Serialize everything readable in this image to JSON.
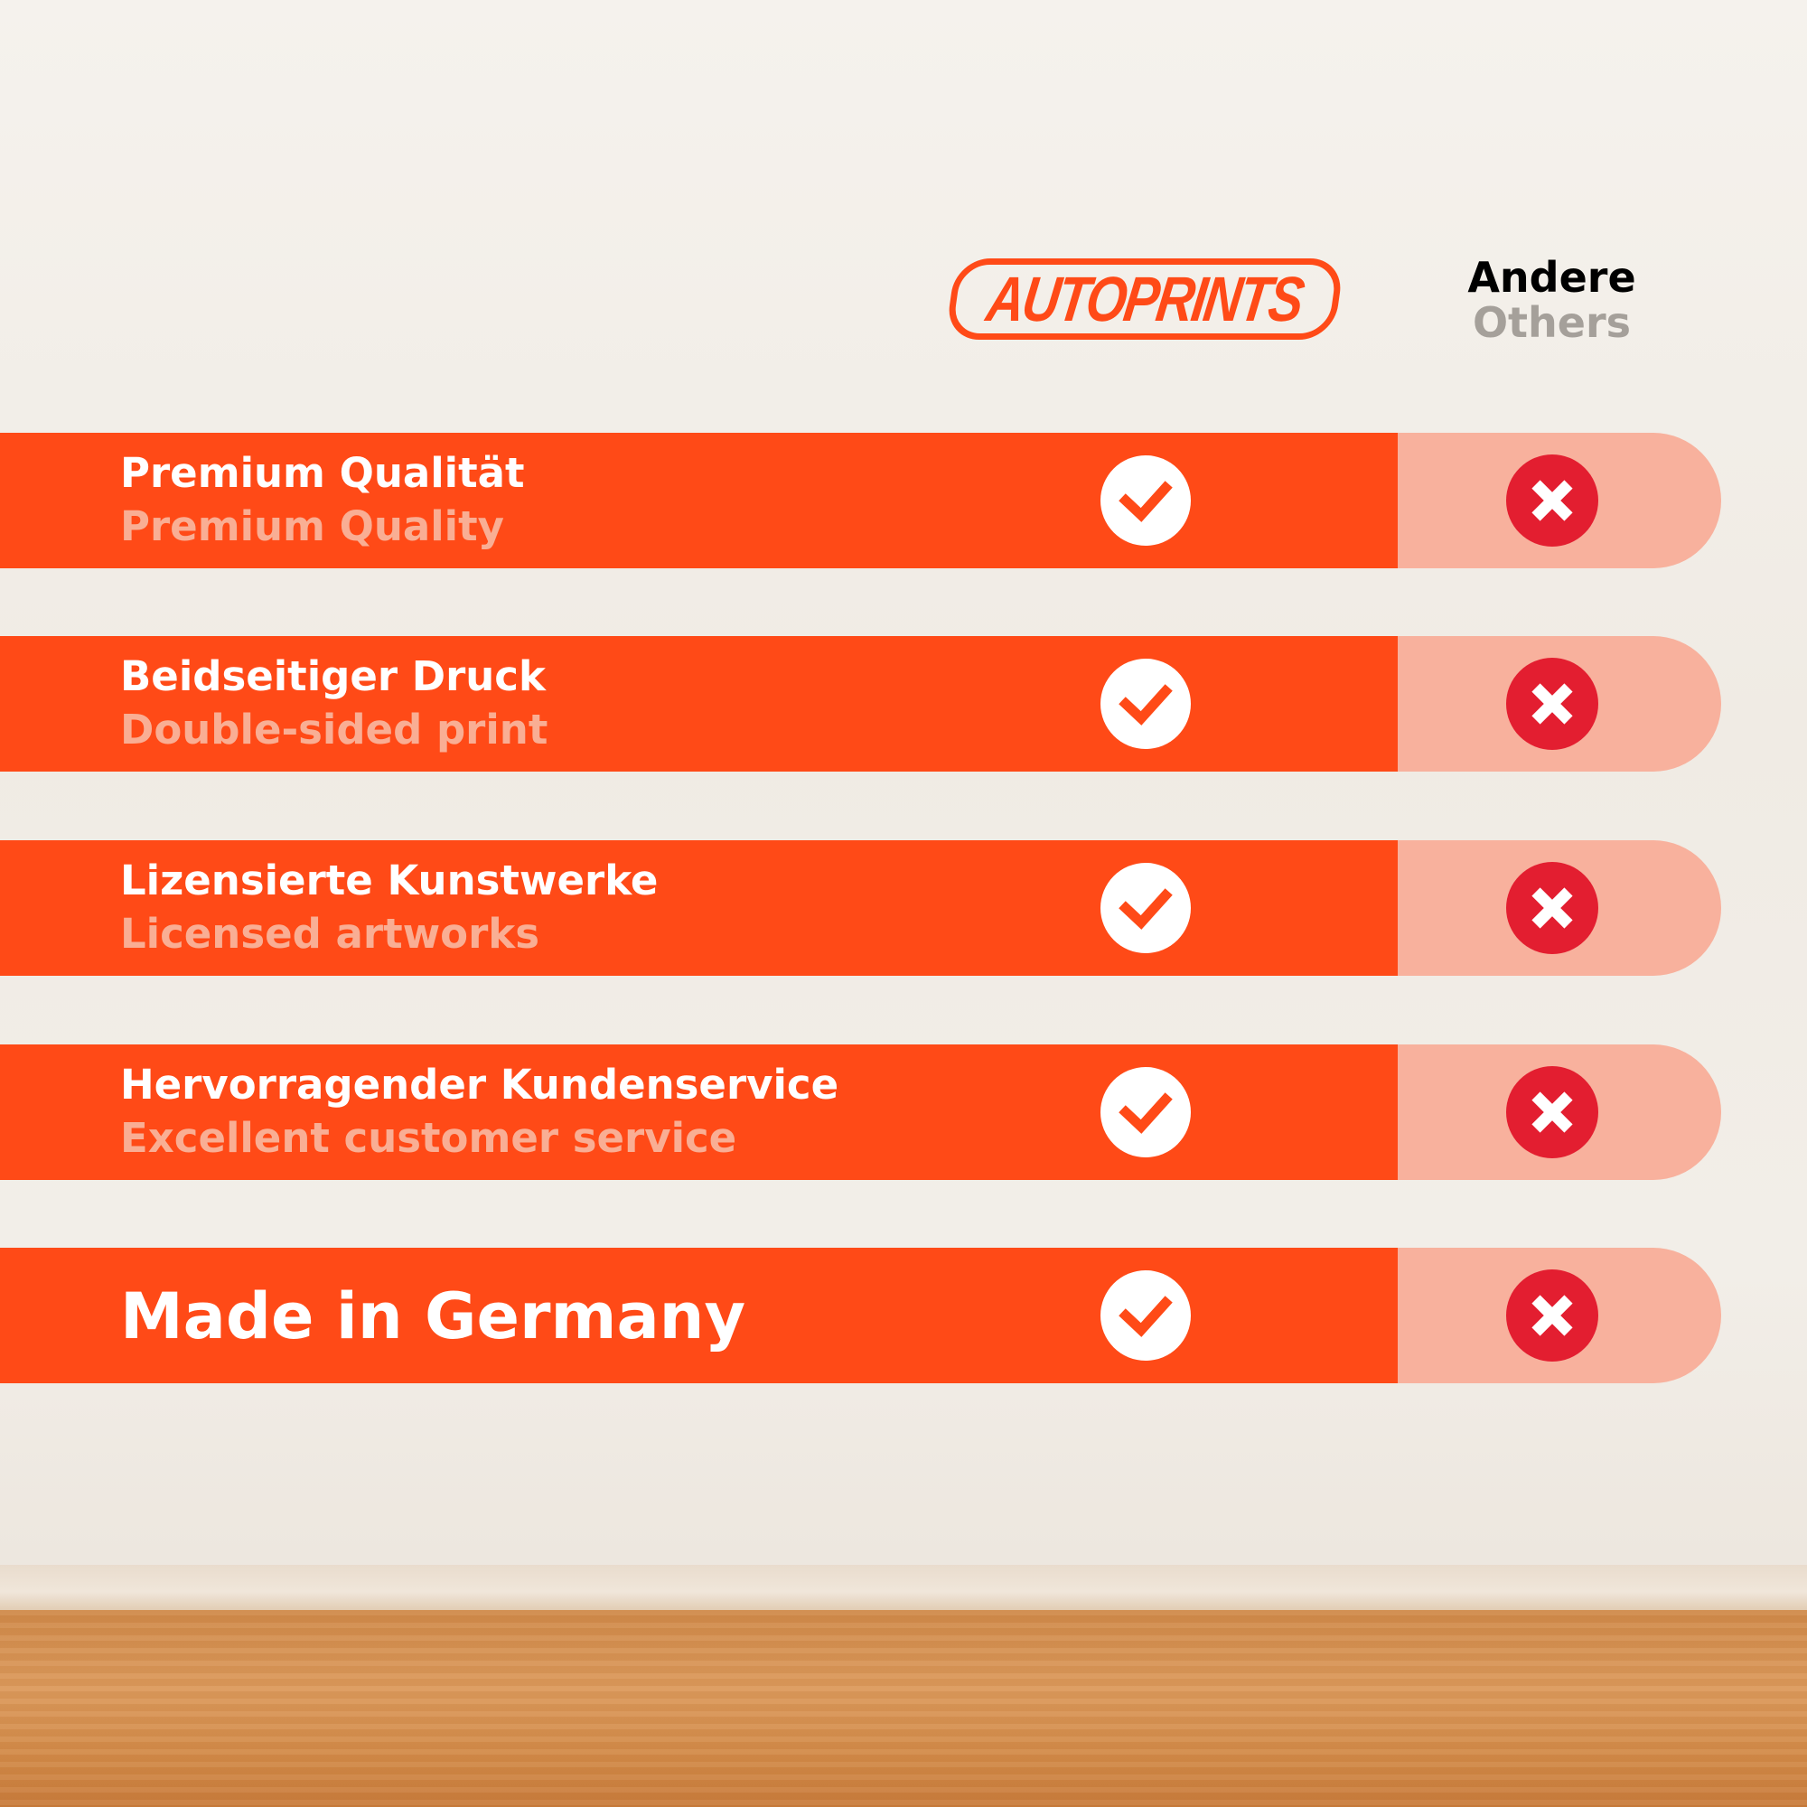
{
  "header": {
    "brand_logo_text": "AUTOPRINTS",
    "others_de": "Andere",
    "others_en": "Others"
  },
  "colors": {
    "brand": "#ff4a17",
    "others_bg": "#f8b19d",
    "cross": "#e31e30"
  },
  "rows": [
    {
      "de": "Premium Qualität",
      "en": "Premium Quality",
      "autoprints": "check-icon",
      "others": "cross-icon"
    },
    {
      "de": "Beidseitiger Druck",
      "en": "Double-sided print",
      "autoprints": "check-icon",
      "others": "cross-icon"
    },
    {
      "de": "Lizensierte Kunstwerke",
      "en": "Licensed artworks",
      "autoprints": "check-icon",
      "others": "cross-icon"
    },
    {
      "de": "Hervorragender Kundenservice",
      "en": "Excellent customer service",
      "autoprints": "check-icon",
      "others": "cross-icon"
    },
    {
      "de": "Made in Germany",
      "autoprints": "check-icon",
      "others": "cross-icon"
    }
  ]
}
